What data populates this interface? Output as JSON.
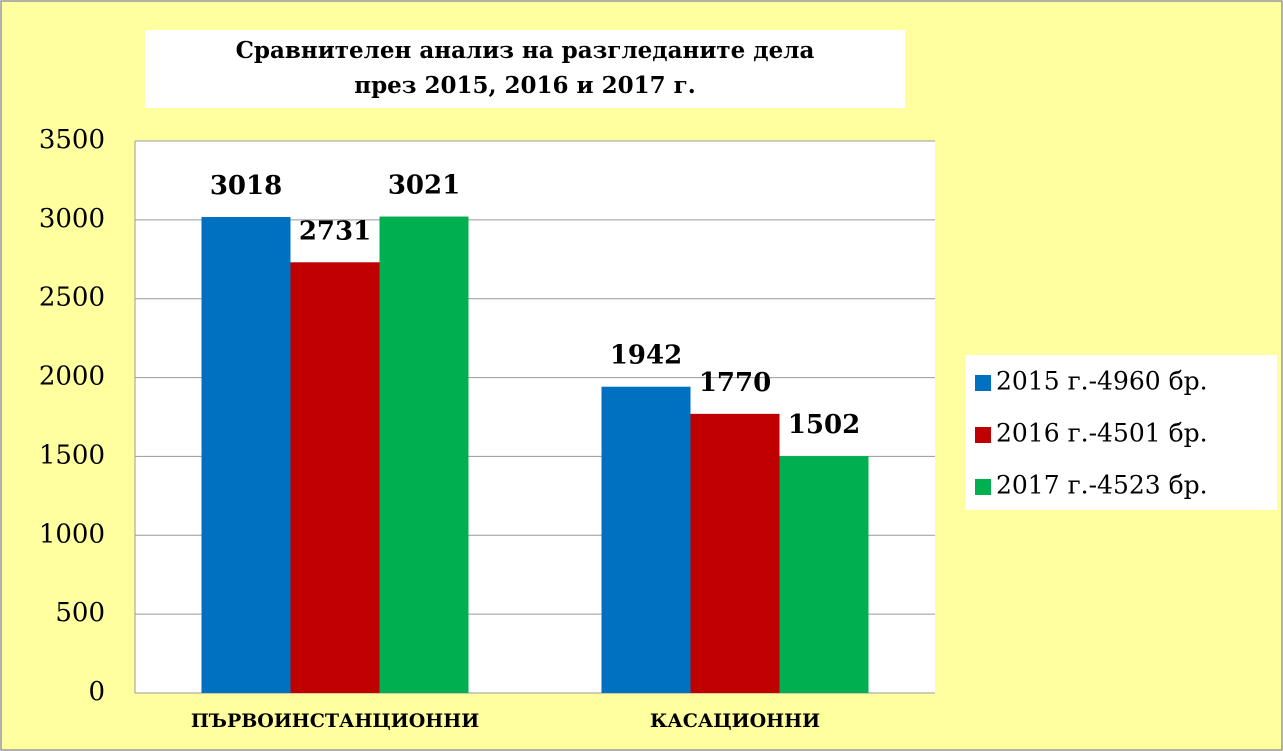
{
  "chart_data": {
    "type": "bar",
    "title": [
      "Сравнителен анализ на разгледаните дела",
      "през 2015, 2016 и 2017 г."
    ],
    "categories": [
      "ПЪРВОИНСТАНЦИОННИ",
      "КАСАЦИОННИ"
    ],
    "series": [
      {
        "name": "2015 г.-4960 бр.",
        "color": "#0070c0",
        "values": [
          3018,
          1942
        ]
      },
      {
        "name": "2016 г.-4501 бр.",
        "color": "#c00000",
        "values": [
          2731,
          1770
        ]
      },
      {
        "name": "2017 г.-4523 бр.",
        "color": "#00b050",
        "values": [
          3021,
          1502
        ]
      }
    ],
    "ylim": [
      0,
      3500
    ],
    "yticks": [
      0,
      500,
      1000,
      1500,
      2000,
      2500,
      3000,
      3500
    ],
    "grid": true,
    "legend": "right"
  }
}
